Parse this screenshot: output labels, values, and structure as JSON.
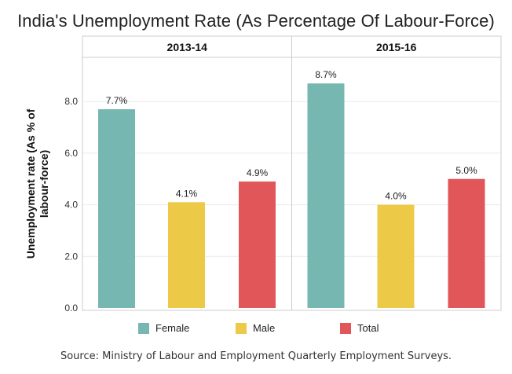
{
  "title": "India's Unemployment Rate (As Percentage Of Labour-Force)",
  "source": "Source: Ministry of Labour and Employment Quarterly Employment Surveys.",
  "chart_data": {
    "type": "bar",
    "title": "India's Unemployment Rate (As Percentage Of Labour-Force)",
    "ylabel": "Unemployment rate (As % of labour-force)",
    "ylabel_lines": [
      "Unemployment rate (As % of",
      "labour-force)"
    ],
    "xlabel": "",
    "ylim": [
      0,
      9.5
    ],
    "yticks": [
      0,
      2,
      4,
      6,
      8
    ],
    "ytick_labels": [
      "0.0",
      "2.0",
      "4.0",
      "6.0",
      "8.0"
    ],
    "grid": true,
    "legend_position": "bottom",
    "categories": [
      "Female",
      "Male",
      "Total"
    ],
    "panels": [
      {
        "name": "2013-14",
        "values": [
          7.7,
          4.1,
          4.9
        ],
        "labels": [
          "7.7%",
          "4.1%",
          "4.9%"
        ]
      },
      {
        "name": "2015-16",
        "values": [
          8.7,
          4.0,
          5.0
        ],
        "labels": [
          "8.7%",
          "4.0%",
          "5.0%"
        ]
      }
    ],
    "colors": [
      "#76b7b2",
      "#edc948",
      "#e15759"
    ]
  }
}
